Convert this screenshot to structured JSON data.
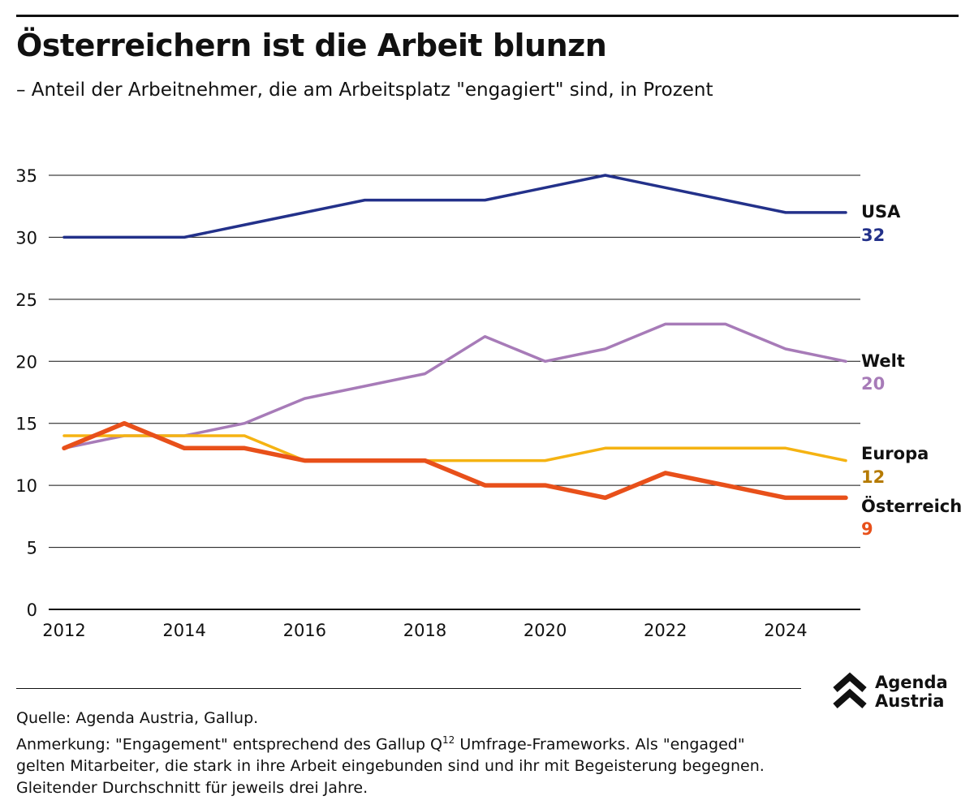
{
  "title": "Österreichern ist die Arbeit blunzn",
  "subtitle": "– Anteil der Arbeitnehmer, die am Arbeitsplatz \"engagiert\" sind, in Prozent",
  "source": "Quelle: Agenda Austria, Gallup.",
  "note": {
    "prefix": "Anmerkung: \"Engagement\" entsprechend des Gallup Q",
    "superscript": "12",
    "suffix": " Umfrage-Frameworks. Als \"engaged\" gelten Mitarbeiter, die stark in ihre Arbeit eingebunden sind und ihr mit Begeisterung begegnen. Gleitender Durchschnitt für jeweils drei Jahre."
  },
  "logo": {
    "line1": "Agenda",
    "line2": "Austria",
    "icon": "double-chevron-up-icon"
  },
  "chart_data": {
    "type": "line",
    "title": "Österreichern ist die Arbeit blunzn",
    "xlabel": "",
    "ylabel": "",
    "x": [
      2012,
      2013,
      2014,
      2015,
      2016,
      2017,
      2018,
      2019,
      2020,
      2021,
      2022,
      2023,
      2024,
      2025
    ],
    "xticks": [
      2012,
      2014,
      2016,
      2018,
      2020,
      2022,
      2024
    ],
    "yticks": [
      0,
      5,
      10,
      15,
      20,
      25,
      30,
      35
    ],
    "xlim": [
      2012,
      2025
    ],
    "ylim": [
      0,
      35
    ],
    "grid": "horizontal",
    "legend": "end-labels",
    "series": [
      {
        "name": "USA",
        "end_label": "32",
        "color": "#23318a",
        "label_color": "#23318a",
        "values": [
          30,
          30,
          30,
          31,
          32,
          33,
          33,
          33,
          34,
          35,
          34,
          33,
          32,
          32
        ]
      },
      {
        "name": "Welt",
        "end_label": "20",
        "color": "#a77bb8",
        "label_color": "#a77bb8",
        "values": [
          13,
          14,
          14,
          15,
          17,
          18,
          19,
          22,
          20,
          21,
          23,
          23,
          21,
          20
        ]
      },
      {
        "name": "Europa",
        "end_label": "12",
        "color": "#f5b312",
        "label_color": "#b57a00",
        "values": [
          14,
          14,
          14,
          14,
          12,
          12,
          12,
          12,
          12,
          13,
          13,
          13,
          13,
          12
        ]
      },
      {
        "name": "Österreich",
        "end_label": "9",
        "color": "#e8501a",
        "label_color": "#e8501a",
        "values": [
          13,
          15,
          13,
          13,
          12,
          12,
          12,
          10,
          10,
          9,
          11,
          10,
          9,
          9
        ]
      }
    ]
  }
}
